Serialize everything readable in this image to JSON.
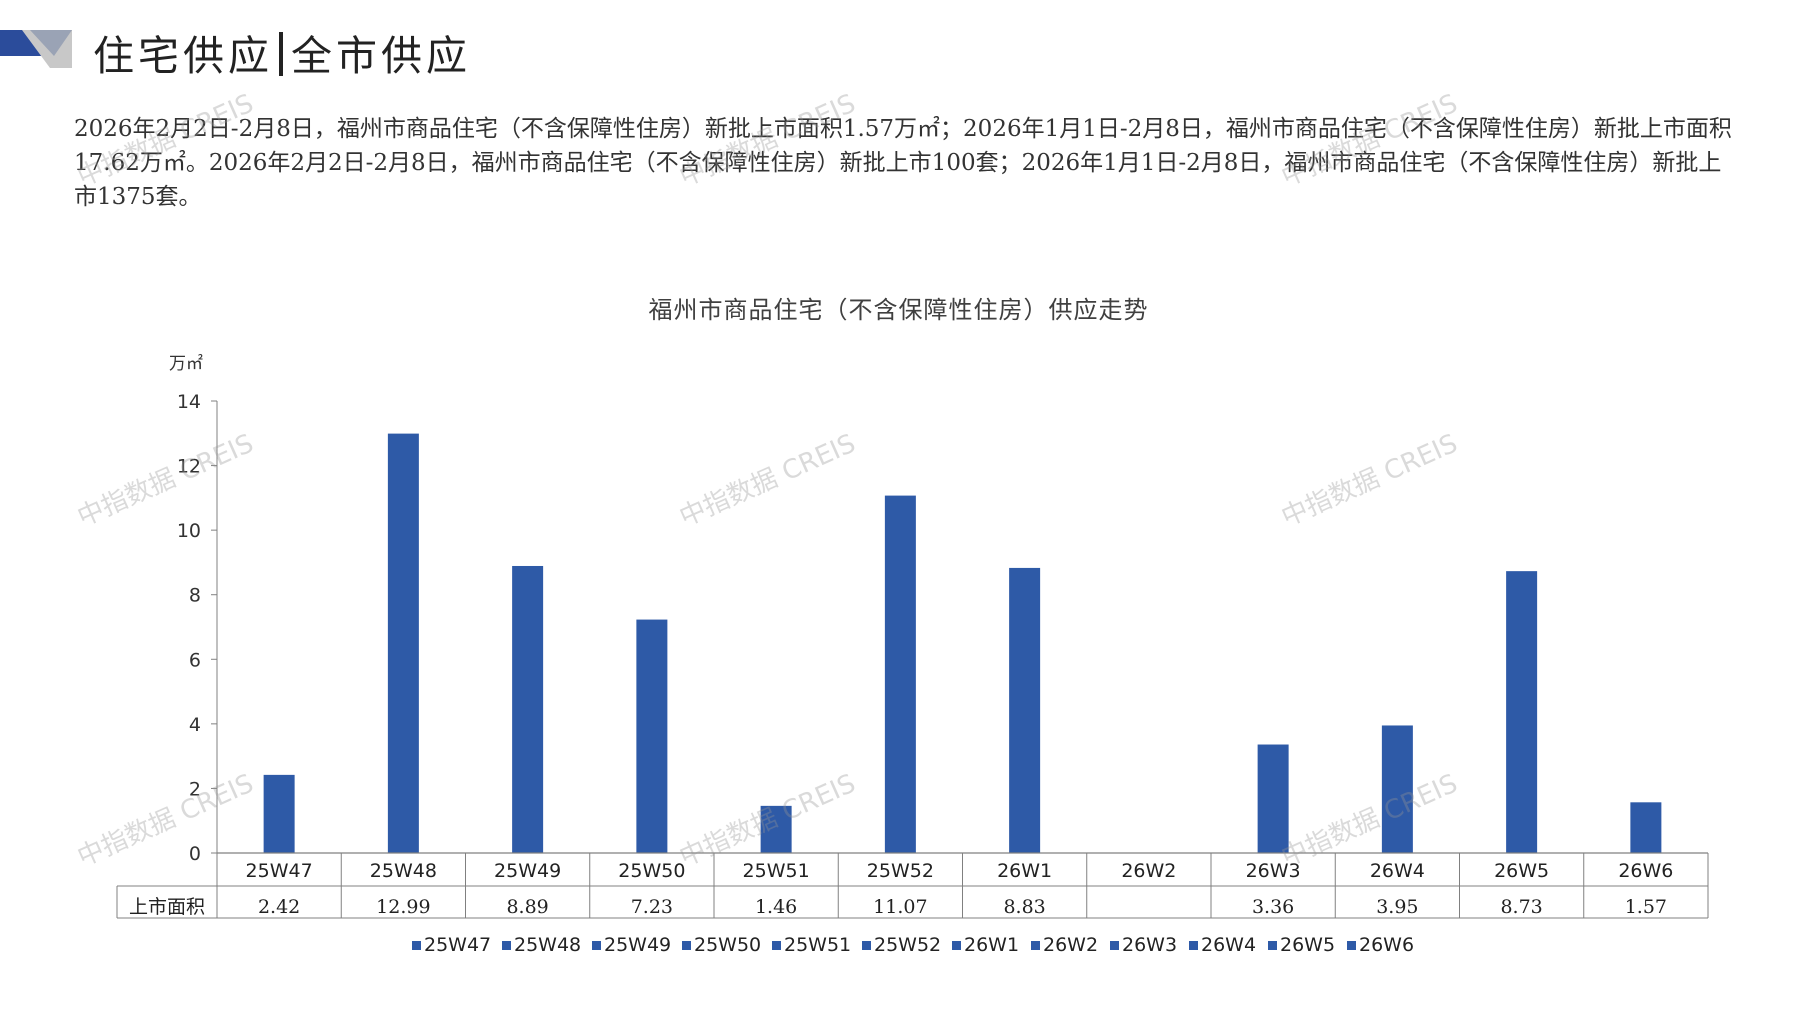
{
  "header": {
    "section": "住宅供应",
    "subsection": "全市供应"
  },
  "summary": "2026年2月2日-2月8日，福州市商品住宅（不含保障性住房）新批上市面积1.57万㎡；2026年1月1日-2月8日，福州市商品住宅（不含保障性住房）新批上市面积17.62万㎡。2026年2月2日-2月8日，福州市商品住宅（不含保障性住房）新批上市100套；2026年1月1日-2月8日，福州市商品住宅（不含保障性住房）新批上市1375套。",
  "watermark": "中指数据 CREIS",
  "colors": {
    "bar": "#2E5AA7",
    "axis": "#808080",
    "deco_dark": "#2B4C9B",
    "deco_light": "#C8C8C8"
  },
  "chart_data": {
    "type": "bar",
    "title": "福州市商品住宅（不含保障性住房）供应走势",
    "ylabel": "万㎡",
    "ylim": [
      0,
      14
    ],
    "yticks": [
      0,
      2,
      4,
      6,
      8,
      10,
      12,
      14
    ],
    "categories": [
      "25W47",
      "25W48",
      "25W49",
      "25W50",
      "25W51",
      "25W52",
      "26W1",
      "26W2",
      "26W3",
      "26W4",
      "26W5",
      "26W6"
    ],
    "series": [
      {
        "name": "上市面积",
        "values": [
          2.42,
          12.99,
          8.89,
          7.23,
          1.46,
          11.07,
          8.83,
          null,
          3.36,
          3.95,
          8.73,
          1.57
        ],
        "labels": [
          "2.42",
          "12.99",
          "8.89",
          "7.23",
          "1.46",
          "11.07",
          "8.83",
          "",
          "3.36",
          "3.95",
          "8.73",
          "1.57"
        ]
      }
    ],
    "data_table": true,
    "legend": "bottom",
    "grid": false
  }
}
